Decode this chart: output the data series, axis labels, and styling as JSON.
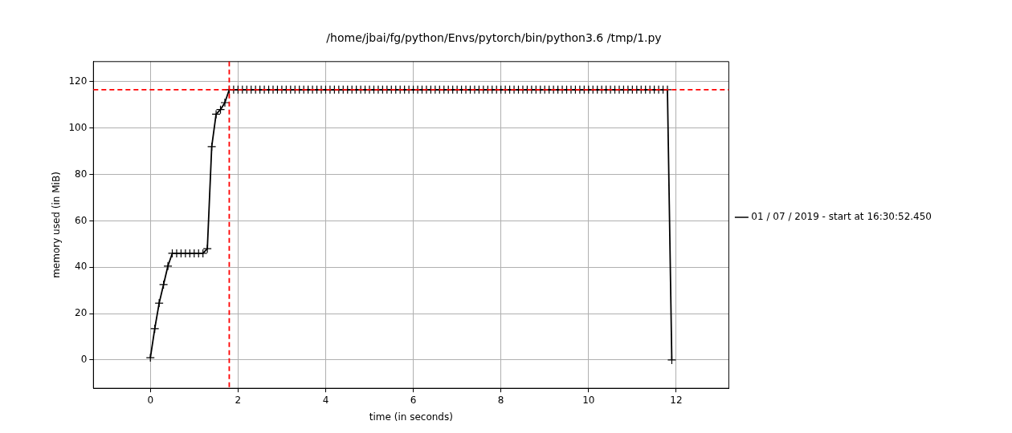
{
  "chart_data": {
    "type": "line",
    "title": "/home/jbai/fg/python/Envs/pytorch/bin/python3.6 /tmp/1.py",
    "xlabel": "time (in seconds)",
    "ylabel": "memory used (in MiB)",
    "x": [
      0,
      0.1,
      0.2,
      0.3,
      0.4,
      0.5,
      0.6,
      0.7,
      0.8,
      0.9,
      1.0,
      1.1,
      1.2,
      1.3,
      1.4,
      1.5,
      1.6,
      1.7,
      1.8,
      1.9,
      2.0,
      2.1,
      2.2,
      2.3,
      2.4,
      2.5,
      2.6,
      2.7,
      2.8,
      2.9,
      3.0,
      3.1,
      3.2,
      3.3,
      3.4,
      3.5,
      3.6,
      3.7,
      3.8,
      3.9,
      4.0,
      4.1,
      4.2,
      4.3,
      4.4,
      4.5,
      4.6,
      4.7,
      4.8,
      4.9,
      5.0,
      5.1,
      5.2,
      5.3,
      5.4,
      5.5,
      5.6,
      5.7,
      5.8,
      5.9,
      6.0,
      6.1,
      6.2,
      6.3,
      6.4,
      6.5,
      6.6,
      6.7,
      6.8,
      6.9,
      7.0,
      7.1,
      7.2,
      7.3,
      7.4,
      7.5,
      7.6,
      7.7,
      7.8,
      7.9,
      8.0,
      8.1,
      8.2,
      8.3,
      8.4,
      8.5,
      8.6,
      8.7,
      8.8,
      8.9,
      9.0,
      9.1,
      9.2,
      9.3,
      9.4,
      9.5,
      9.6,
      9.7,
      9.8,
      9.9,
      10.0,
      10.1,
      10.2,
      10.3,
      10.4,
      10.5,
      10.6,
      10.7,
      10.8,
      10.9,
      11.0,
      11.1,
      11.2,
      11.3,
      11.4,
      11.5,
      11.6,
      11.7,
      11.8,
      11.9
    ],
    "series": [
      {
        "name": "01 / 07 / 2019 - start at 16:30:52.450",
        "color": "#000000",
        "values": [
          1,
          13.5,
          24.5,
          32.5,
          40.5,
          46,
          46,
          46,
          46,
          46,
          46,
          46,
          46,
          48,
          92,
          106,
          108,
          111,
          116.6,
          116.6,
          116.6,
          116.6,
          116.6,
          116.6,
          116.6,
          116.6,
          116.6,
          116.6,
          116.6,
          116.6,
          116.6,
          116.6,
          116.6,
          116.6,
          116.6,
          116.6,
          116.6,
          116.6,
          116.6,
          116.6,
          116.6,
          116.6,
          116.6,
          116.6,
          116.6,
          116.6,
          116.6,
          116.6,
          116.6,
          116.6,
          116.6,
          116.6,
          116.6,
          116.6,
          116.6,
          116.6,
          116.6,
          116.6,
          116.6,
          116.6,
          116.6,
          116.6,
          116.6,
          116.6,
          116.6,
          116.6,
          116.6,
          116.6,
          116.6,
          116.6,
          116.6,
          116.6,
          116.6,
          116.6,
          116.6,
          116.6,
          116.6,
          116.6,
          116.6,
          116.6,
          116.6,
          116.6,
          116.6,
          116.6,
          116.6,
          116.6,
          116.6,
          116.6,
          116.6,
          116.6,
          116.6,
          116.6,
          116.6,
          116.6,
          116.6,
          116.6,
          116.6,
          116.6,
          116.6,
          116.6,
          116.6,
          116.6,
          116.6,
          116.6,
          116.6,
          116.6,
          116.6,
          116.6,
          116.6,
          116.6,
          116.6,
          116.6,
          116.6,
          116.6,
          116.6,
          116.6,
          116.6,
          116.6,
          116.6,
          0
        ]
      }
    ],
    "xlim": [
      -1.3,
      13.2
    ],
    "xticks": [
      0,
      2,
      4,
      6,
      8,
      10,
      12
    ],
    "ylim": [
      -12.2,
      128.7
    ],
    "yticks": [
      0,
      20,
      40,
      60,
      80,
      100,
      120
    ],
    "ref_lines": [
      {
        "axis": "y",
        "value": 116.6,
        "color": "#ff0000",
        "line_style": "dashed"
      },
      {
        "axis": "x",
        "value": 1.8,
        "color": "#ff0000",
        "line_style": "dashed"
      }
    ],
    "grid": true,
    "legend": "right",
    "marker": "cross",
    "line_style": "solid"
  }
}
